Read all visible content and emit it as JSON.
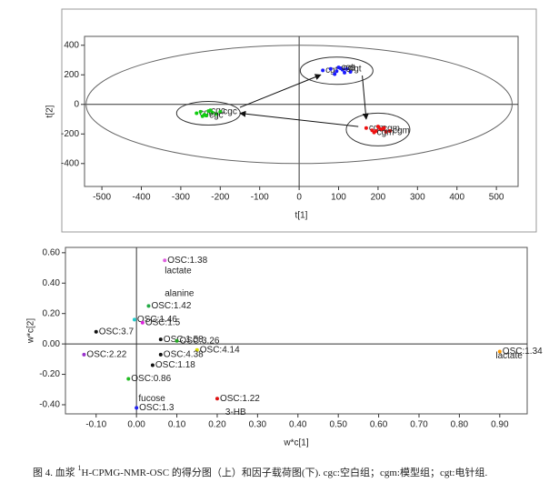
{
  "chart_data": [
    {
      "type": "scatter",
      "xlabel": "t[1]",
      "ylabel": "t[2]",
      "xlim": [
        -544,
        555
      ],
      "ylim": [
        -555,
        460
      ],
      "xticks": [
        -500,
        -400,
        -300,
        -200,
        -100,
        0,
        100,
        200,
        300,
        400,
        500
      ],
      "yticks": [
        -400,
        -200,
        0,
        200,
        400
      ],
      "series": [
        {
          "name": "cgt",
          "color": "#1a1aff",
          "x": [
            60,
            80,
            95,
            105,
            110,
            115,
            120,
            130,
            90,
            100
          ],
          "values": [
            230,
            240,
            225,
            245,
            235,
            215,
            240,
            220,
            205,
            250
          ]
        },
        {
          "name": "cgm",
          "color": "#ee1111",
          "x": [
            170,
            185,
            195,
            205,
            210,
            220,
            230,
            200,
            215,
            190
          ],
          "values": [
            -160,
            -175,
            -180,
            -165,
            -170,
            -185,
            -180,
            -150,
            -160,
            -190
          ]
        },
        {
          "name": "cgc",
          "color": "#11cc11",
          "x": [
            -260,
            -250,
            -240,
            -230,
            -220,
            -210,
            -200,
            -245,
            -225,
            -235
          ],
          "values": [
            -60,
            -50,
            -70,
            -45,
            -55,
            -65,
            -50,
            -80,
            -40,
            -75
          ]
        }
      ]
    },
    {
      "type": "labeled-scatter",
      "xlabel": "w*c[1]",
      "ylabel": "w*c[2]",
      "xlim": [
        -0.176,
        0.968
      ],
      "ylim": [
        -0.46,
        0.635
      ],
      "xticks": [
        {
          "value": -0.1,
          "label": "-0.10"
        },
        {
          "value": 0,
          "label": "0.00"
        },
        {
          "value": 0.1,
          "label": "0.10"
        },
        {
          "value": 0.2,
          "label": "0.20"
        },
        {
          "value": 0.3,
          "label": "0.30"
        },
        {
          "value": 0.4,
          "label": "0.40"
        },
        {
          "value": 0.5,
          "label": "0.50"
        },
        {
          "value": 0.6,
          "label": "0.60"
        },
        {
          "value": 0.7,
          "label": "0.70"
        },
        {
          "value": 0.8,
          "label": "0.80"
        },
        {
          "value": 0.9,
          "label": "0.90"
        }
      ],
      "yticks": [
        {
          "value": -0.4,
          "label": "-0.40"
        },
        {
          "value": -0.2,
          "label": "-0.20"
        },
        {
          "value": 0,
          "label": "0.00"
        },
        {
          "value": 0.2,
          "label": "0.20"
        },
        {
          "value": 0.4,
          "label": "0.40"
        },
        {
          "value": 0.6,
          "label": "0.60"
        }
      ],
      "point_labels": [
        "OSC:1.38",
        "OSC:1.42",
        "OSC:1.46",
        "OSC:1.5",
        "OSC:3.7",
        "OSC:1.58",
        "OSC:3.26",
        "OSC:4.14",
        "OSC:4.38",
        "OSC:1.18",
        "OSC:0.86",
        "OSC:1.3",
        "OSC:1.22",
        "OSC:1.34",
        "OSC:2.22"
      ],
      "x": [
        0.07,
        0.03,
        -0.005,
        0.015,
        -0.1,
        0.06,
        0.1,
        0.15,
        0.06,
        0.04,
        -0.02,
        0.0,
        0.2,
        0.9,
        -0.13
      ],
      "values": [
        0.55,
        0.25,
        0.16,
        0.14,
        0.08,
        0.03,
        0.02,
        -0.04,
        -0.07,
        -0.14,
        -0.23,
        -0.42,
        -0.36,
        -0.05,
        -0.07
      ],
      "colors": [
        "#e060e0",
        "#22aa44",
        "#22cccc",
        "#dd22dd",
        "#111111",
        "#111111",
        "#22aa22",
        "#dddd00",
        "#111111",
        "#111111",
        "#22bb22",
        "#2222ee",
        "#dd1111",
        "#ff9900",
        "#9933cc"
      ],
      "annotations": [
        "lactate",
        "alanine",
        "fucose",
        "3-HB",
        "lactate"
      ]
    }
  ],
  "caption": {
    "before": "图 4. 血浆 ",
    "sup": "1",
    "after": "H-CPMG-NMR-OSC 的得分图（上）和因子载荷图(下). cgc:空白组；cgm:模型组；cgt:电针组."
  }
}
